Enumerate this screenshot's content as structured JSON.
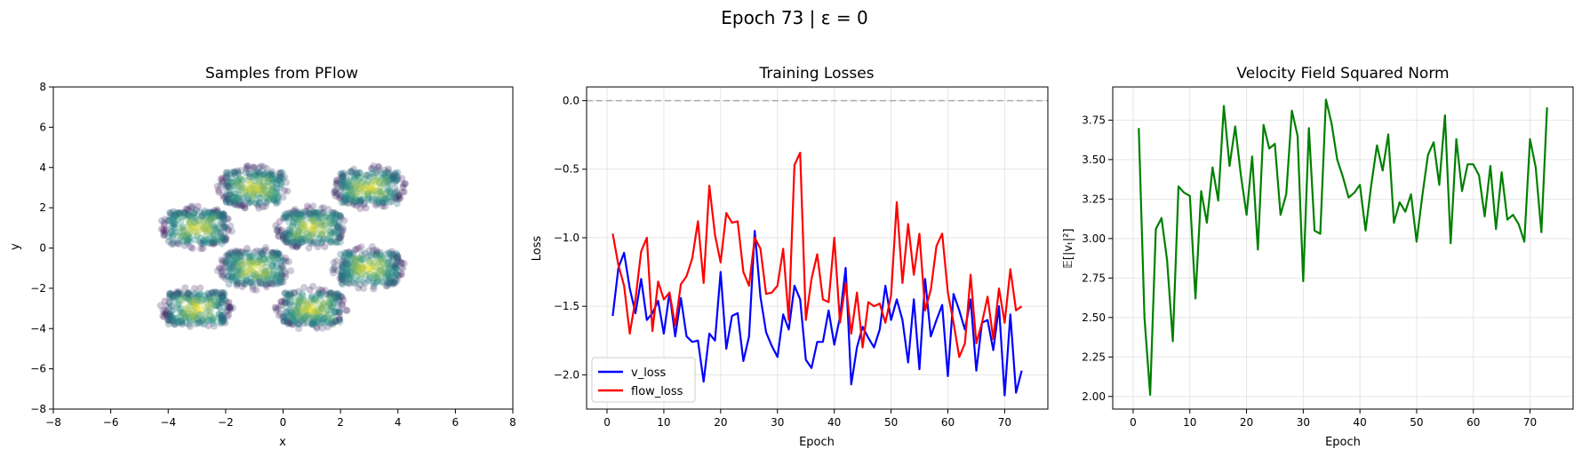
{
  "figure": {
    "suptitle": "Epoch 73 | ε = 0"
  },
  "chart_data": [
    {
      "type": "scatter",
      "title": "Samples from PFlow",
      "xlabel": "x",
      "ylabel": "y",
      "xlim": [
        -8,
        8
      ],
      "ylim": [
        -8,
        8
      ],
      "xticks": [
        -8,
        -6,
        -4,
        -2,
        0,
        2,
        4,
        6,
        8
      ],
      "yticks": [
        -8,
        -6,
        -4,
        -2,
        0,
        2,
        4,
        6,
        8
      ],
      "xtick_labels": [
        "−8",
        "−6",
        "−4",
        "−2",
        "0",
        "2",
        "4",
        "6",
        "8"
      ],
      "ytick_labels": [
        "−8",
        "−6",
        "−4",
        "−2",
        "0",
        "2",
        "4",
        "6",
        "8"
      ],
      "grid": false,
      "colormap": "viridis",
      "clusters": [
        {
          "center": [
            -1,
            3
          ],
          "half_width": [
            1,
            0.8
          ]
        },
        {
          "center": [
            3,
            3
          ],
          "half_width": [
            1,
            0.8
          ]
        },
        {
          "center": [
            -3,
            1
          ],
          "half_width": [
            1,
            0.8
          ]
        },
        {
          "center": [
            1,
            1
          ],
          "half_width": [
            1,
            0.8
          ]
        },
        {
          "center": [
            -1,
            -1
          ],
          "half_width": [
            1,
            0.8
          ]
        },
        {
          "center": [
            3,
            -1
          ],
          "half_width": [
            1,
            0.8
          ]
        },
        {
          "center": [
            -3,
            -3
          ],
          "half_width": [
            1,
            0.8
          ]
        },
        {
          "center": [
            1,
            -3
          ],
          "half_width": [
            1,
            0.8
          ]
        }
      ],
      "colors": {
        "low": "#440154",
        "mid": "#21908c",
        "high": "#fde725"
      }
    },
    {
      "type": "line",
      "title": "Training Losses",
      "xlabel": "Epoch",
      "ylabel": "Loss",
      "xlim": [
        -3.6,
        77.6
      ],
      "ylim": [
        -2.25,
        0.1
      ],
      "xticks": [
        0,
        10,
        20,
        30,
        40,
        50,
        60,
        70
      ],
      "yticks": [
        -2.0,
        -1.5,
        -1.0,
        -0.5,
        0.0
      ],
      "xtick_labels": [
        "0",
        "10",
        "20",
        "30",
        "40",
        "50",
        "60",
        "70"
      ],
      "ytick_labels": [
        "−2.0",
        "−1.5",
        "−1.0",
        "−0.5",
        "0.0"
      ],
      "grid": true,
      "legend": "lower-left",
      "reference_line": 0.0,
      "x_start": 1,
      "series": [
        {
          "name": "v_loss",
          "color": "#0000ff",
          "values": [
            -1.57,
            -1.22,
            -1.11,
            -1.37,
            -1.55,
            -1.3,
            -1.6,
            -1.55,
            -1.46,
            -1.7,
            -1.4,
            -1.72,
            -1.44,
            -1.72,
            -1.76,
            -1.75,
            -2.05,
            -1.7,
            -1.75,
            -1.25,
            -1.81,
            -1.57,
            -1.55,
            -1.9,
            -1.72,
            -0.95,
            -1.43,
            -1.69,
            -1.79,
            -1.87,
            -1.56,
            -1.67,
            -1.35,
            -1.45,
            -1.89,
            -1.95,
            -1.76,
            -1.76,
            -1.53,
            -1.78,
            -1.58,
            -1.22,
            -2.07,
            -1.8,
            -1.65,
            -1.73,
            -1.8,
            -1.67,
            -1.35,
            -1.6,
            -1.45,
            -1.6,
            -1.91,
            -1.45,
            -1.96,
            -1.3,
            -1.72,
            -1.6,
            -1.49,
            -2.01,
            -1.41,
            -1.53,
            -1.67,
            -1.45,
            -1.97,
            -1.62,
            -1.6,
            -1.82,
            -1.5,
            -2.15,
            -1.56,
            -2.13,
            -1.97
          ]
        },
        {
          "name": "flow_loss",
          "color": "#ff0000",
          "values": [
            -0.97,
            -1.2,
            -1.35,
            -1.7,
            -1.45,
            -1.1,
            -1.0,
            -1.68,
            -1.32,
            -1.45,
            -1.4,
            -1.64,
            -1.34,
            -1.28,
            -1.15,
            -0.88,
            -1.33,
            -0.62,
            -0.98,
            -1.18,
            -0.82,
            -0.89,
            -0.88,
            -1.25,
            -1.35,
            -1.0,
            -1.08,
            -1.41,
            -1.4,
            -1.35,
            -1.08,
            -1.6,
            -0.47,
            -0.38,
            -1.6,
            -1.3,
            -1.12,
            -1.45,
            -1.47,
            -1.0,
            -1.62,
            -1.33,
            -1.7,
            -1.4,
            -1.8,
            -1.47,
            -1.5,
            -1.48,
            -1.62,
            -1.42,
            -0.74,
            -1.33,
            -0.9,
            -1.27,
            -0.97,
            -1.53,
            -1.38,
            -1.06,
            -0.97,
            -1.4,
            -1.62,
            -1.87,
            -1.77,
            -1.27,
            -1.77,
            -1.62,
            -1.43,
            -1.74,
            -1.37,
            -1.62,
            -1.23,
            -1.53,
            -1.5
          ]
        }
      ]
    },
    {
      "type": "line",
      "title": "Velocity Field Squared Norm",
      "xlabel": "Epoch",
      "ylabel": "𝔼[|vₜ|²]",
      "xlim": [
        -3.6,
        77.6
      ],
      "ylim": [
        1.92,
        3.96
      ],
      "xticks": [
        0,
        10,
        20,
        30,
        40,
        50,
        60,
        70
      ],
      "yticks": [
        2.0,
        2.25,
        2.5,
        2.75,
        3.0,
        3.25,
        3.5,
        3.75
      ],
      "xtick_labels": [
        "0",
        "10",
        "20",
        "30",
        "40",
        "50",
        "60",
        "70"
      ],
      "ytick_labels": [
        "2.00",
        "2.25",
        "2.50",
        "2.75",
        "3.00",
        "3.25",
        "3.50",
        "3.75"
      ],
      "grid": true,
      "x_start": 1,
      "series": [
        {
          "color": "#008000",
          "values": [
            3.7,
            2.5,
            2.01,
            3.06,
            3.13,
            2.86,
            2.35,
            3.33,
            3.29,
            3.27,
            2.62,
            3.3,
            3.1,
            3.45,
            3.24,
            3.84,
            3.46,
            3.71,
            3.4,
            3.15,
            3.52,
            2.93,
            3.72,
            3.57,
            3.6,
            3.15,
            3.28,
            3.81,
            3.65,
            2.73,
            3.7,
            3.05,
            3.03,
            3.88,
            3.73,
            3.5,
            3.39,
            3.26,
            3.29,
            3.34,
            3.05,
            3.34,
            3.59,
            3.43,
            3.66,
            3.1,
            3.23,
            3.17,
            3.28,
            2.98,
            3.27,
            3.53,
            3.61,
            3.34,
            3.78,
            2.97,
            3.63,
            3.3,
            3.47,
            3.47,
            3.4,
            3.14,
            3.46,
            3.06,
            3.42,
            3.12,
            3.15,
            3.09,
            2.98,
            3.63,
            3.45,
            3.04,
            3.83
          ]
        }
      ]
    }
  ]
}
